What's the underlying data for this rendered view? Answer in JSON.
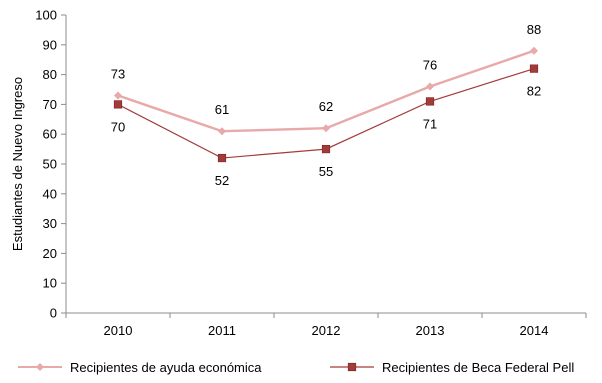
{
  "chart_data": {
    "type": "line",
    "title": "",
    "xlabel": "",
    "ylabel": "Estudiantes de Nuevo Ingreso",
    "categories": [
      "2010",
      "2011",
      "2012",
      "2013",
      "2014"
    ],
    "ylim": [
      0,
      100
    ],
    "yticks": [
      0,
      10,
      20,
      30,
      40,
      50,
      60,
      70,
      80,
      90,
      100
    ],
    "grid": false,
    "legend_position": "bottom",
    "series": [
      {
        "name": "Recipientes de ayuda económica",
        "values": [
          73,
          61,
          62,
          76,
          88
        ],
        "color": "#E8A9A9",
        "marker": "diamond",
        "label_position": "above"
      },
      {
        "name": "Recipientes de Beca Federal Pell",
        "values": [
          70,
          52,
          55,
          71,
          82
        ],
        "color": "#A33B3B",
        "marker": "square",
        "label_position": "below"
      }
    ]
  }
}
